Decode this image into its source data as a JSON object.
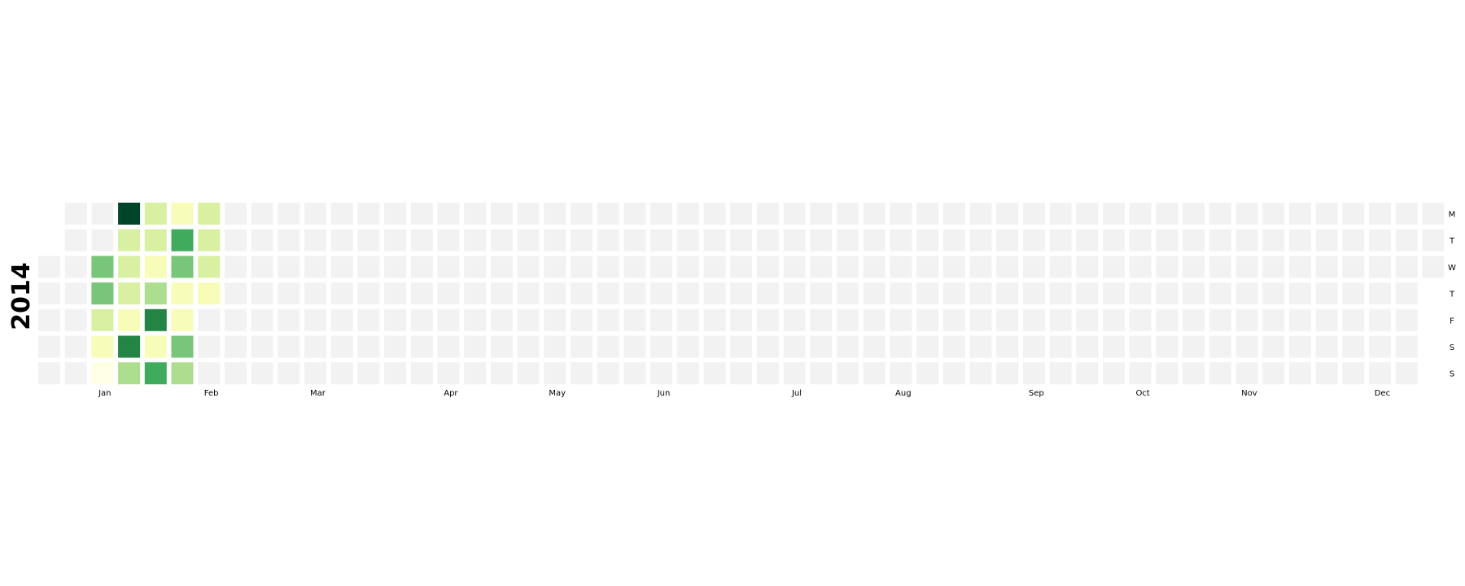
{
  "chart_data": {
    "type": "heatmap",
    "year": "2014",
    "month_labels": [
      {
        "label": "Jan",
        "week": 2.5
      },
      {
        "label": "Feb",
        "week": 6.5
      },
      {
        "label": "Mar",
        "week": 10.5
      },
      {
        "label": "Apr",
        "week": 15.5
      },
      {
        "label": "May",
        "week": 19.5
      },
      {
        "label": "Jun",
        "week": 23.5
      },
      {
        "label": "Jul",
        "week": 28.5
      },
      {
        "label": "Aug",
        "week": 32.5
      },
      {
        "label": "Sep",
        "week": 37.5
      },
      {
        "label": "Oct",
        "week": 41.5
      },
      {
        "label": "Nov",
        "week": 45.5
      },
      {
        "label": "Dec",
        "week": 50.5
      }
    ],
    "day_labels": [
      "M",
      "T",
      "W",
      "T",
      "F",
      "S",
      "S"
    ],
    "empty_color": "#f2f2f2",
    "colorscale": [
      "#ffffe5",
      "#f7fcb9",
      "#d9f0a3",
      "#addd8e",
      "#78c679",
      "#41ab5d",
      "#238443",
      "#006837",
      "#004529"
    ],
    "first_week_start_day": 2,
    "last_week_end_day": 2,
    "weeks": 53,
    "values": [
      {
        "week": 2,
        "day": 2,
        "value": 0.55
      },
      {
        "week": 2,
        "day": 3,
        "value": 0.45
      },
      {
        "week": 2,
        "day": 4,
        "value": 0.2
      },
      {
        "week": 2,
        "day": 5,
        "value": 0.12
      },
      {
        "week": 2,
        "day": 6,
        "value": 0.02
      },
      {
        "week": 3,
        "day": 0,
        "value": 1.0
      },
      {
        "week": 3,
        "day": 1,
        "value": 0.22
      },
      {
        "week": 3,
        "day": 2,
        "value": 0.24
      },
      {
        "week": 3,
        "day": 3,
        "value": 0.26
      },
      {
        "week": 3,
        "day": 4,
        "value": 0.08
      },
      {
        "week": 3,
        "day": 5,
        "value": 0.7
      },
      {
        "week": 3,
        "day": 6,
        "value": 0.42
      },
      {
        "week": 4,
        "day": 0,
        "value": 0.27
      },
      {
        "week": 4,
        "day": 1,
        "value": 0.3
      },
      {
        "week": 4,
        "day": 2,
        "value": 0.1
      },
      {
        "week": 4,
        "day": 3,
        "value": 0.35
      },
      {
        "week": 4,
        "day": 4,
        "value": 0.78
      },
      {
        "week": 4,
        "day": 5,
        "value": 0.1
      },
      {
        "week": 4,
        "day": 6,
        "value": 0.6
      },
      {
        "week": 5,
        "day": 0,
        "value": 0.1
      },
      {
        "week": 5,
        "day": 1,
        "value": 0.58
      },
      {
        "week": 5,
        "day": 2,
        "value": 0.45
      },
      {
        "week": 5,
        "day": 3,
        "value": 0.08
      },
      {
        "week": 5,
        "day": 4,
        "value": 0.08
      },
      {
        "week": 5,
        "day": 5,
        "value": 0.55
      },
      {
        "week": 5,
        "day": 6,
        "value": 0.4
      },
      {
        "week": 6,
        "day": 0,
        "value": 0.3
      },
      {
        "week": 6,
        "day": 1,
        "value": 0.2
      },
      {
        "week": 6,
        "day": 2,
        "value": 0.22
      },
      {
        "week": 6,
        "day": 3,
        "value": 0.18
      }
    ]
  }
}
